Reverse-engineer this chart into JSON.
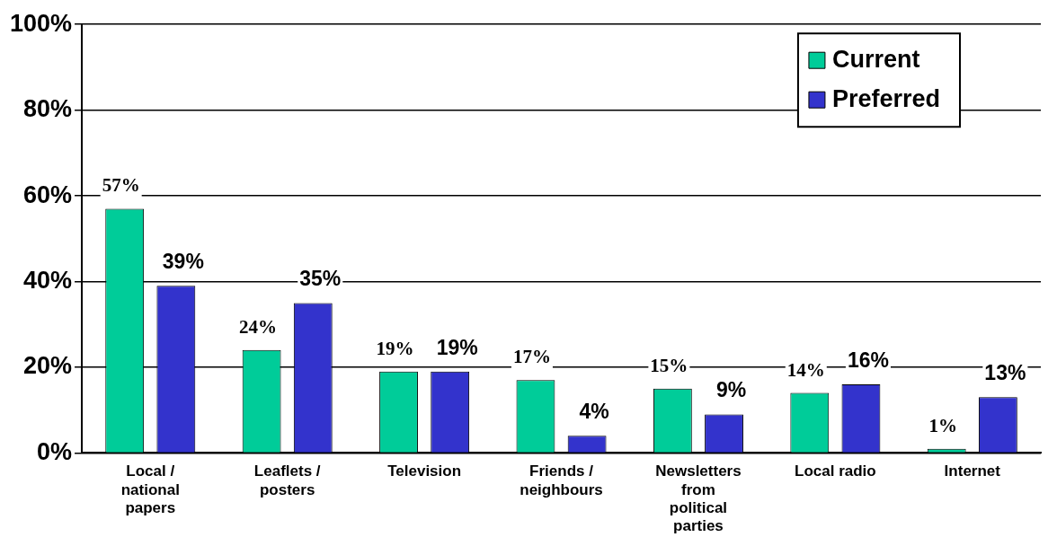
{
  "chart_data": {
    "type": "bar",
    "categories": [
      "Local / national papers",
      "Leaflets / posters",
      "Television",
      "Friends / neighbours",
      "Newsletters from political parties",
      "Local radio",
      "Internet"
    ],
    "series": [
      {
        "name": "Current",
        "color": "#00cc99",
        "values": [
          57,
          24,
          19,
          17,
          15,
          14,
          1
        ],
        "value_labels": [
          "57%",
          "24%",
          "19%",
          "17%",
          "15%",
          "14%",
          "1%"
        ]
      },
      {
        "name": "Preferred",
        "color": "#3333cc",
        "values": [
          39,
          35,
          19,
          4,
          9,
          16,
          13
        ],
        "value_labels": [
          "39%",
          "35%",
          "19%",
          "4%",
          "9%",
          "16%",
          "13%"
        ]
      }
    ],
    "ylim": [
      0,
      100
    ],
    "yticks": [
      {
        "value": 0,
        "label": "0%"
      },
      {
        "value": 20,
        "label": "20%"
      },
      {
        "value": 40,
        "label": "40%"
      },
      {
        "value": 60,
        "label": "60%"
      },
      {
        "value": 80,
        "label": "80%"
      },
      {
        "value": 100,
        "label": "100%"
      }
    ],
    "grid": "y",
    "legend": "top right"
  }
}
